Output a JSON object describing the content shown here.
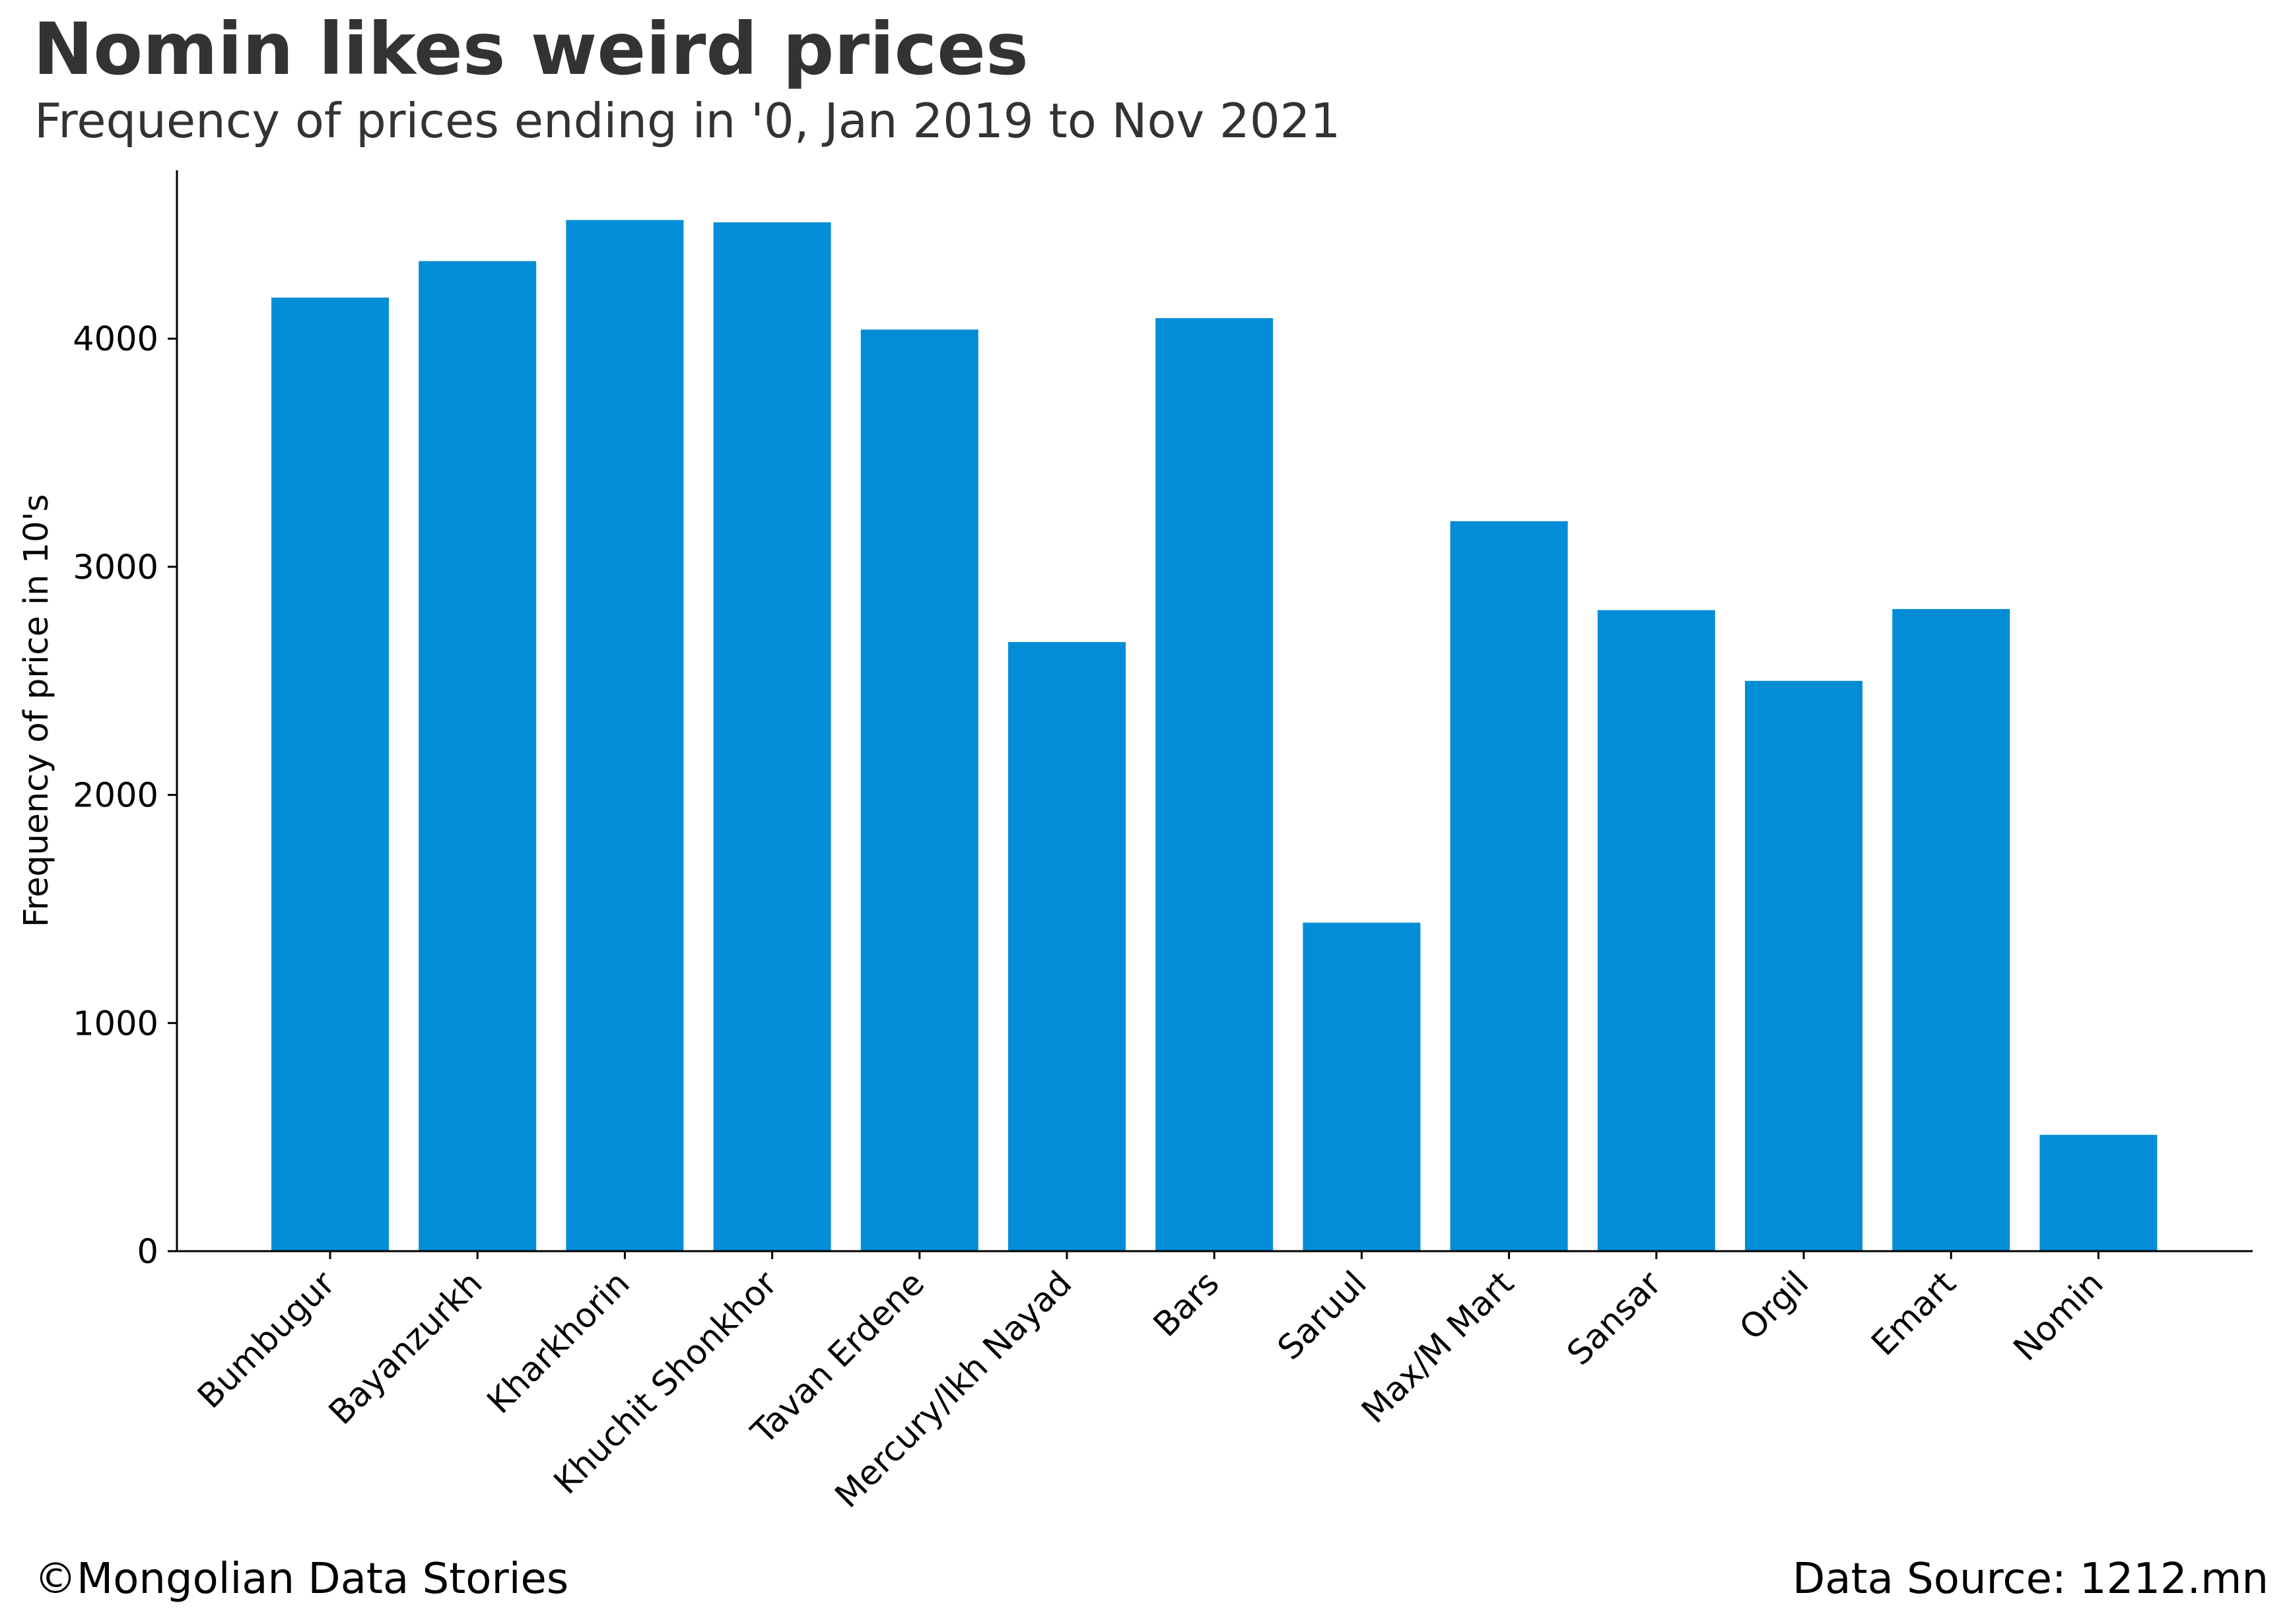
{
  "header": {
    "title": "Nomin likes weird prices",
    "subtitle": "Frequency of prices ending in '0, Jan 2019 to Nov 2021"
  },
  "footer": {
    "credit": "©Mongolian Data Stories",
    "source": "Data Source: 1212.mn"
  },
  "colors": {
    "bar": "#038dd6",
    "axis": "#000000",
    "title": "#333333"
  },
  "chart_data": {
    "type": "bar",
    "title": "Nomin likes weird prices",
    "subtitle": "Frequency of prices ending in '0, Jan 2019 to Nov 2021",
    "xlabel": "",
    "ylabel": "Frequency of price in 10's",
    "ylim": [
      0,
      4750
    ],
    "yticks": [
      0,
      1000,
      2000,
      3000,
      4000
    ],
    "grid": false,
    "categories": [
      "Bumbugur",
      "Bayanzurkh",
      "Kharkhorin",
      "Khuchit Shonkhor",
      "Tavan Erdene",
      "Mercury/Ikh Nayad",
      "Bars",
      "Saruul",
      "Max/M Mart",
      "Sansar",
      "Orgil",
      "Emart",
      "Nomin"
    ],
    "values": [
      4180,
      4340,
      4520,
      4510,
      4040,
      2670,
      4090,
      1440,
      3200,
      2810,
      2500,
      2815,
      510
    ]
  }
}
